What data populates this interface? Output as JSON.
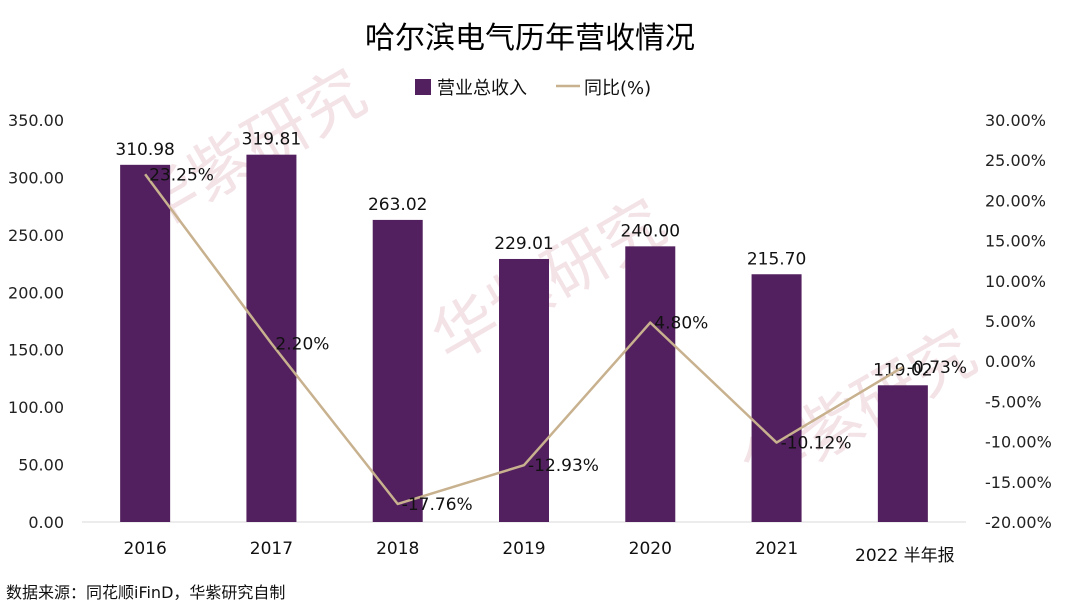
{
  "chart_data": {
    "type": "bar",
    "title": "哈尔滨电气历年营收情况",
    "categories": [
      "2016",
      "2017",
      "2018",
      "2019",
      "2020",
      "2021",
      "2022 半年报"
    ],
    "series": [
      {
        "name": "营业总收入",
        "kind": "bar",
        "axis": "left",
        "color": "#52205e",
        "values": [
          310.98,
          319.81,
          263.02,
          229.01,
          240.0,
          215.7,
          119.02
        ],
        "labels": [
          "310.98",
          "319.81",
          "263.02",
          "229.01",
          "240.00",
          "215.70",
          "119.02"
        ]
      },
      {
        "name": "同比(%)",
        "kind": "line",
        "axis": "right",
        "color": "#c8b18e",
        "values": [
          23.25,
          2.2,
          -17.76,
          -12.93,
          4.8,
          -10.12,
          -0.73
        ],
        "labels": [
          "23.25%",
          "2.20%",
          "-17.76%",
          "-12.93%",
          "4.80%",
          "-10.12%",
          "-0.73%"
        ]
      }
    ],
    "y_left": {
      "range": [
        0,
        350
      ],
      "ticks": [
        0,
        50,
        100,
        150,
        200,
        250,
        300,
        350
      ],
      "tick_labels": [
        "0.00",
        "50.00",
        "100.00",
        "150.00",
        "200.00",
        "250.00",
        "300.00",
        "350.00"
      ]
    },
    "y_right": {
      "range": [
        -20,
        30
      ],
      "ticks": [
        -20,
        -15,
        -10,
        -5,
        0,
        5,
        10,
        15,
        20,
        25,
        30
      ],
      "tick_labels": [
        "-20.00%",
        "-15.00%",
        "-10.00%",
        "-5.00%",
        "0.00%",
        "5.00%",
        "10.00%",
        "15.00%",
        "20.00%",
        "25.00%",
        "30.00%"
      ]
    },
    "legend_position": "top",
    "grid": false,
    "source": "数据来源：同花顺iFinD，华紫研究自制",
    "watermark": "华紫研究"
  }
}
